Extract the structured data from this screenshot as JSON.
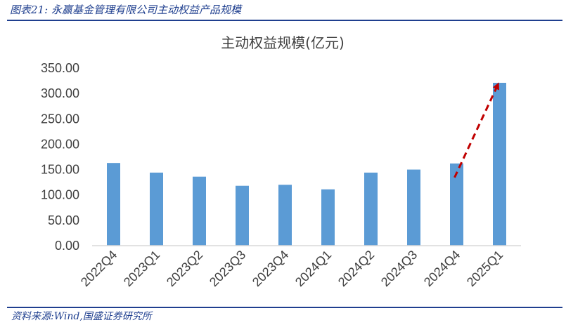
{
  "header": {
    "figure_label": "图表21:",
    "figure_title": "永赢基金管理有限公司主动权益产品规模"
  },
  "footer": {
    "source": "资料来源:Wind,国盛证券研究所"
  },
  "colors": {
    "bar": "#5b9bd5",
    "arrow": "#c00000",
    "rule": "#1f3f8f",
    "axis": "#d9d9d9",
    "text": "#404040"
  },
  "chart_data": {
    "type": "bar",
    "title": "主动权益规模(亿元)",
    "categories": [
      "2022Q4",
      "2023Q1",
      "2023Q2",
      "2023Q3",
      "2023Q4",
      "2024Q1",
      "2024Q2",
      "2024Q3",
      "2024Q4",
      "2025Q1"
    ],
    "values": [
      163,
      144,
      136,
      118,
      120,
      111,
      144,
      150,
      162,
      321
    ],
    "ylim": [
      0,
      350
    ],
    "yticks": [
      "0.00",
      "50.00",
      "100.00",
      "150.00",
      "200.00",
      "250.00",
      "300.00",
      "350.00"
    ],
    "grid": false,
    "legend": "none",
    "annotation": {
      "type": "dashed-arrow",
      "from_category": "2024Q4",
      "to_category": "2025Q1",
      "direction": "up"
    }
  }
}
